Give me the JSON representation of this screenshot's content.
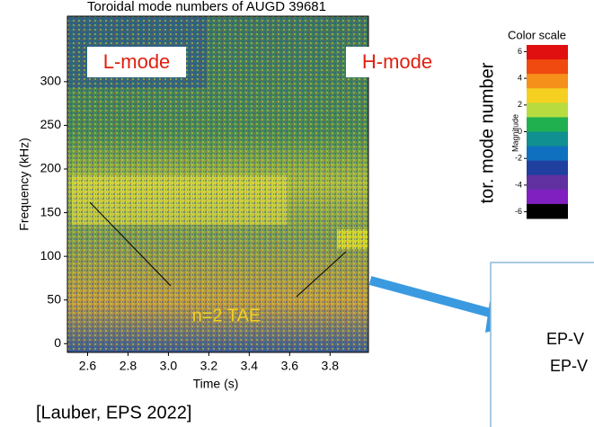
{
  "chart_data": {
    "type": "spectrogram",
    "title": "Toroidal mode numbers of AUGD 39681",
    "x_label": "Time (s)",
    "y_label": "Frequency (kHz)",
    "xlim": [
      2.5,
      3.99
    ],
    "xticks": [
      {
        "value": 2.6,
        "label": "2.6"
      },
      {
        "value": 2.8,
        "label": "2.8"
      },
      {
        "value": 3.0,
        "label": "3.0"
      },
      {
        "value": 3.2,
        "label": "3.2"
      },
      {
        "value": 3.4,
        "label": "3.4"
      },
      {
        "value": 3.6,
        "label": "3.6"
      },
      {
        "value": 3.8,
        "label": "3.8"
      }
    ],
    "ylim": [
      -10,
      375
    ],
    "yticks": [
      0,
      50,
      100,
      150,
      200,
      250,
      300
    ],
    "annotations": [
      "L-mode",
      "H-mode",
      "n=2 TAE"
    ],
    "colorbar": {
      "title": "Color scale",
      "label": "Magnitude",
      "axis_label": "tor. mode number",
      "clim": [
        -6.5,
        6.5
      ],
      "ticks": [
        6,
        4,
        2,
        0,
        -2,
        -4,
        -6
      ],
      "colors": [
        "#e01010",
        "#f04a10",
        "#f5901a",
        "#f5d020",
        "#b8dc40",
        "#20b050",
        "#109090",
        "#1070c0",
        "#2040a0",
        "#6030a0",
        "#8020c0",
        "#000000"
      ]
    }
  },
  "citation": "[Lauber, EPS 2022]",
  "side_box": {
    "lines": [
      "EP-V",
      "EP-V"
    ]
  }
}
